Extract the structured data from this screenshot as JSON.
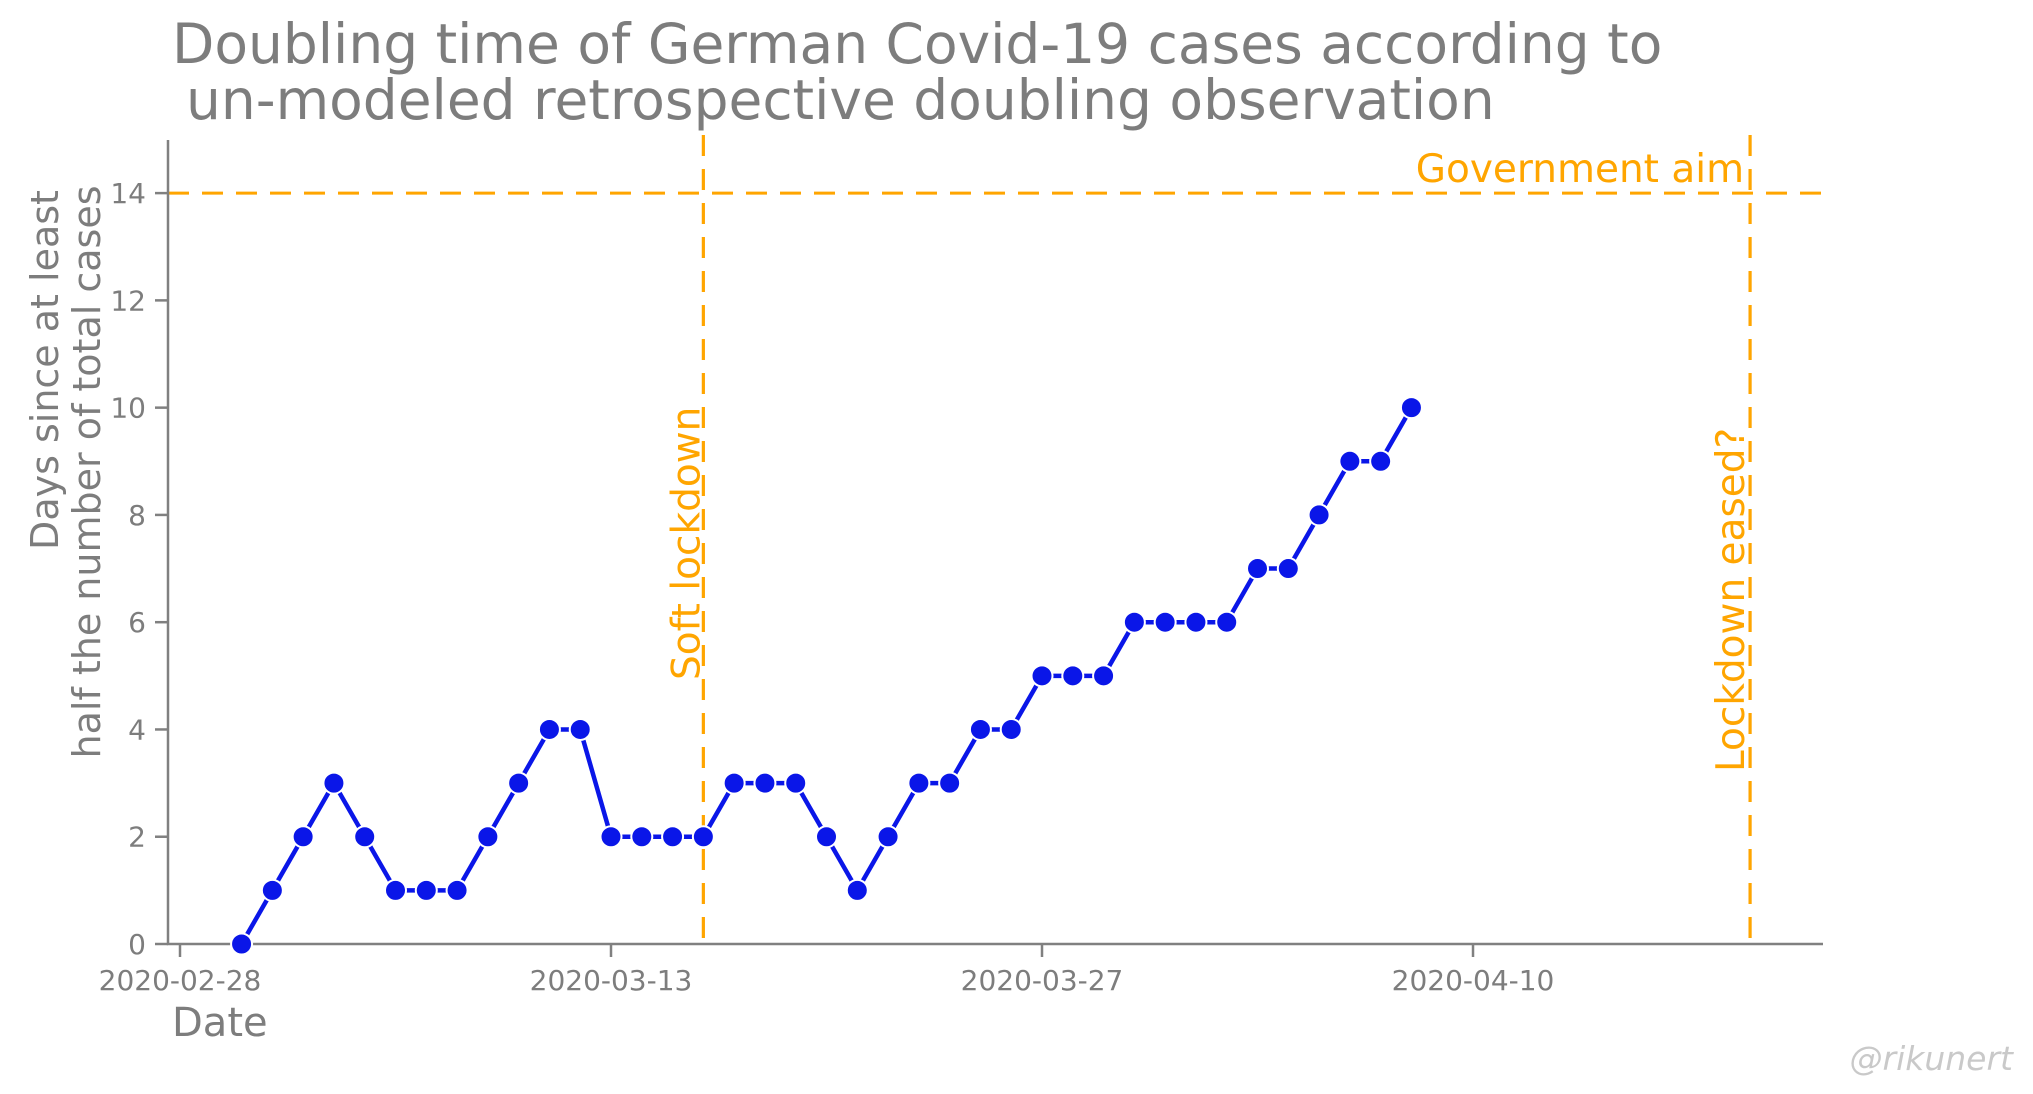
{
  "chart_data": {
    "type": "line",
    "title_lines": [
      "Doubling time of German Covid-19 cases according to",
      "un-modeled retrospective doubling observation"
    ],
    "xlabel": "Date",
    "ylabel_lines": [
      "Days since at least",
      "half the number of total cases"
    ],
    "x": [
      "2020-03-01",
      "2020-03-02",
      "2020-03-03",
      "2020-03-04",
      "2020-03-05",
      "2020-03-06",
      "2020-03-07",
      "2020-03-08",
      "2020-03-09",
      "2020-03-10",
      "2020-03-11",
      "2020-03-12",
      "2020-03-13",
      "2020-03-14",
      "2020-03-15",
      "2020-03-16",
      "2020-03-17",
      "2020-03-18",
      "2020-03-19",
      "2020-03-20",
      "2020-03-21",
      "2020-03-22",
      "2020-03-23",
      "2020-03-24",
      "2020-03-25",
      "2020-03-26",
      "2020-03-27",
      "2020-03-28",
      "2020-03-29",
      "2020-03-30",
      "2020-03-31",
      "2020-04-01",
      "2020-04-02",
      "2020-04-03",
      "2020-04-04",
      "2020-04-05",
      "2020-04-06",
      "2020-04-07",
      "2020-04-08"
    ],
    "values": [
      0,
      1,
      2,
      3,
      2,
      1,
      1,
      1,
      2,
      3,
      4,
      4,
      2,
      2,
      2,
      2,
      3,
      3,
      3,
      2,
      1,
      2,
      3,
      3,
      4,
      4,
      5,
      5,
      5,
      6,
      6,
      6,
      6,
      7,
      7,
      8,
      9,
      9,
      10
    ],
    "xticks": [
      "2020-02-28",
      "2020-03-13",
      "2020-03-27",
      "2020-04-10"
    ],
    "yticks": [
      0,
      2,
      4,
      6,
      8,
      10,
      12,
      14
    ],
    "ylim": [
      0,
      15
    ],
    "grid": false,
    "legend": "none",
    "annotations": {
      "government_aim": {
        "label": "Government aim",
        "y": 14,
        "style": "dashed"
      },
      "soft_lockdown": {
        "label": "Soft lockdown",
        "date": "2020-03-16",
        "style": "dashed"
      },
      "lockdown_eased": {
        "label": "Lockdown eased?",
        "date": "2020-04-19",
        "style": "dashed"
      }
    },
    "colors": {
      "series": "#0a16e8",
      "annotation": "#ffa500",
      "text": "#7d7d7d",
      "spine": "#808080",
      "watermark": "#c9c9c9"
    },
    "watermark": "@rikunert"
  }
}
